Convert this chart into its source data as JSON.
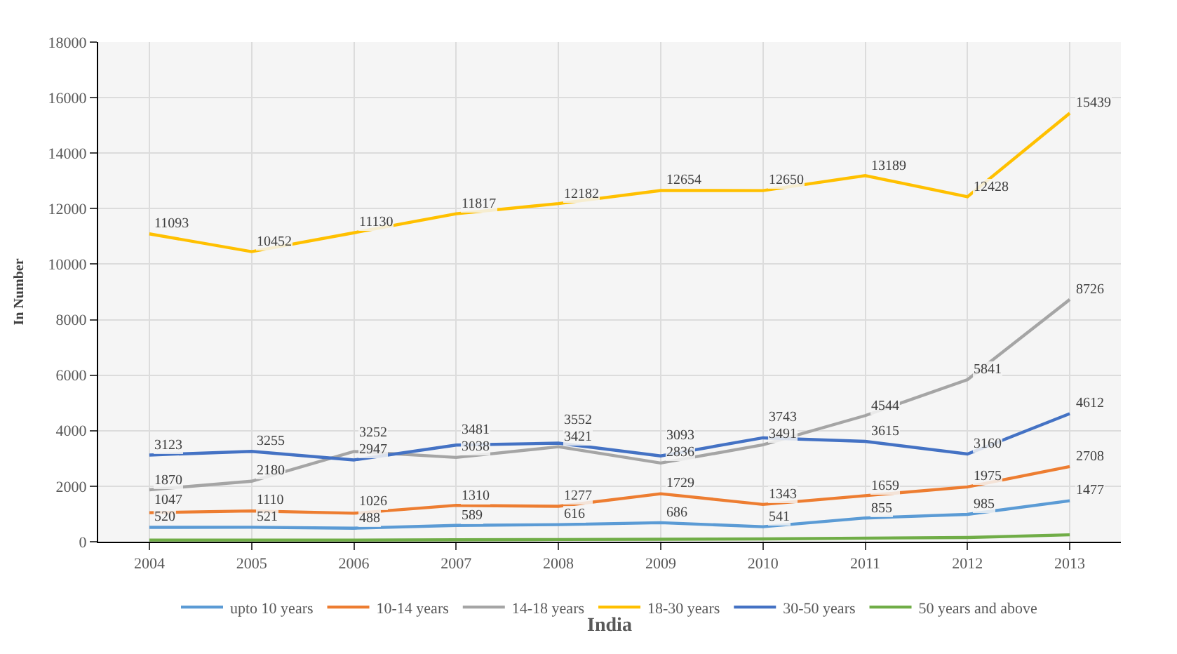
{
  "chart_data": {
    "type": "line",
    "xlabel": "India",
    "ylabel": "In Number",
    "categories": [
      "2004",
      "2005",
      "2006",
      "2007",
      "2008",
      "2009",
      "2010",
      "2011",
      "2012",
      "2013"
    ],
    "ylim": [
      0,
      18000
    ],
    "yticks": [
      0,
      2000,
      4000,
      6000,
      8000,
      10000,
      12000,
      14000,
      16000,
      18000
    ],
    "grid": true,
    "legend": "bottom",
    "marker": "none",
    "line_style": "solid",
    "series": [
      {
        "name": "upto 10 years",
        "color": "#5b9bd5",
        "values": [
          520,
          521,
          488,
          589,
          616,
          686,
          541,
          855,
          985,
          1477
        ],
        "value_labels": [
          "520",
          "521",
          "488",
          "589",
          "616",
          "686",
          "541",
          "855",
          "985",
          "1477"
        ]
      },
      {
        "name": "10-14 years",
        "color": "#ed7d31",
        "values": [
          1047,
          1110,
          1026,
          1310,
          1277,
          1729,
          1343,
          1659,
          1975,
          2708
        ],
        "value_labels": [
          "1047",
          "1110",
          "1026",
          "1310",
          "1277",
          "1729",
          "1343",
          "1659",
          "1975",
          "2708"
        ]
      },
      {
        "name": "14-18 years",
        "color": "#a5a5a5",
        "values": [
          1870,
          2180,
          3252,
          3038,
          3421,
          2836,
          3491,
          4544,
          5841,
          8726
        ],
        "value_labels": [
          "1870",
          "2180",
          "3252",
          "3038",
          "3421",
          "2836",
          "3491",
          "4544",
          "5841",
          "8726"
        ]
      },
      {
        "name": "18-30 years",
        "color": "#ffc000",
        "values": [
          11093,
          10452,
          11130,
          11817,
          12182,
          12654,
          12650,
          13189,
          12428,
          15439
        ],
        "value_labels": [
          "11093",
          "10452",
          "11130",
          "11817",
          "12182",
          "12654",
          "12650",
          "13189",
          "12428",
          "15439"
        ]
      },
      {
        "name": "30-50 years",
        "color": "#4472c4",
        "values": [
          3123,
          3255,
          2947,
          3481,
          3552,
          3093,
          3743,
          3615,
          3160,
          4612
        ],
        "value_labels": [
          "3123",
          "3255",
          "2947",
          "3481",
          "3552",
          "3093",
          "3743",
          "3615",
          "3160",
          "4612"
        ]
      },
      {
        "name": "50 years and above",
        "color": "#70ad47",
        "values": [
          60,
          60,
          60,
          70,
          80,
          90,
          100,
          130,
          150,
          250
        ]
      }
    ]
  }
}
